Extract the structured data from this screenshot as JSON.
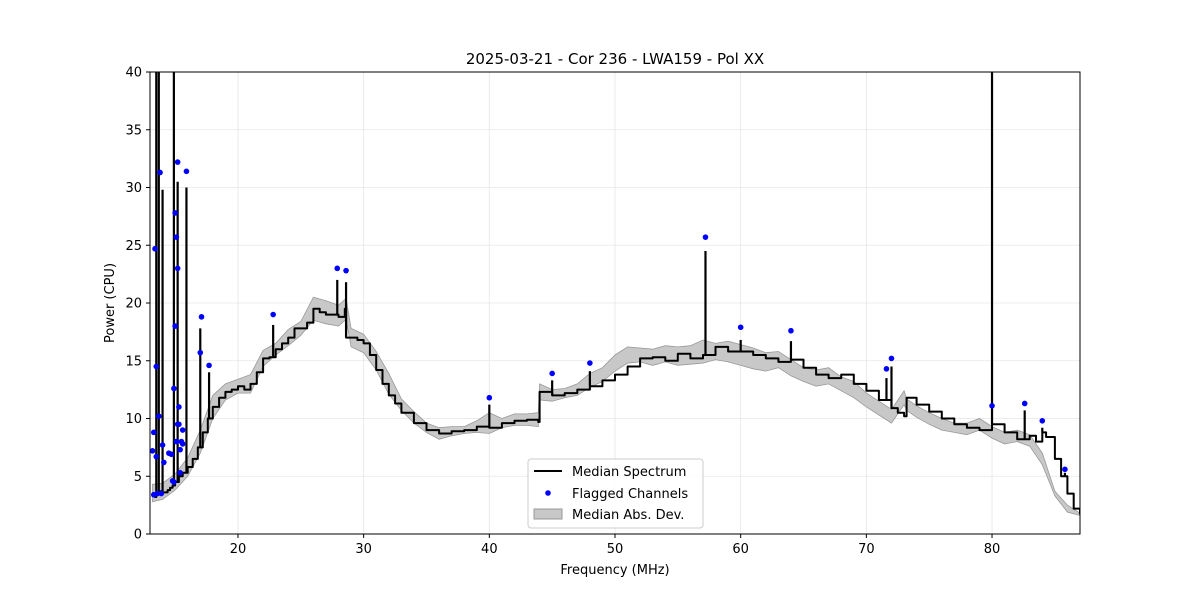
{
  "chart_data": {
    "type": "line",
    "title": "2025-03-21 - Cor 236 - LWA159 - Pol XX",
    "xlabel": "Frequency (MHz)",
    "ylabel": "Power (CPU)",
    "xlim": [
      13.0,
      87.0
    ],
    "ylim": [
      0,
      40
    ],
    "x_ticks": [
      20,
      30,
      40,
      50,
      60,
      70,
      80
    ],
    "y_ticks": [
      0,
      5,
      10,
      15,
      20,
      25,
      30,
      35,
      40
    ],
    "grid": true,
    "legend_position": "bottom-center",
    "colors": {
      "median": "#000000",
      "flagged": "#0000ff",
      "mad_fill": "#c8c8c8",
      "mad_edge": "#999999"
    },
    "series": [
      {
        "name": "Median Spectrum",
        "kind": "line",
        "x": [
          13.2,
          13.3,
          13.4,
          13.5,
          13.6,
          13.7,
          13.8,
          13.9,
          14.0,
          14.2,
          14.4,
          14.6,
          14.8,
          15.0,
          15.3,
          15.6,
          16.0,
          16.4,
          16.8,
          17.2,
          17.6,
          18.0,
          18.5,
          19.0,
          19.5,
          20.0,
          20.5,
          21.0,
          21.5,
          22.0,
          22.5,
          23.0,
          23.5,
          24.0,
          24.5,
          25.0,
          25.5,
          26.0,
          26.5,
          27.0,
          27.5,
          28.0,
          28.5,
          28.6,
          29.0,
          29.5,
          30.0,
          30.5,
          31.0,
          31.5,
          32.0,
          32.5,
          33.0,
          34.0,
          35.0,
          36.0,
          37.0,
          38.0,
          39.0,
          40.0,
          41.0,
          42.0,
          43.0,
          43.9,
          44.0,
          45.0,
          46.0,
          47.0,
          48.0,
          49.0,
          50.0,
          51.0,
          52.0,
          53.0,
          54.0,
          55.0,
          56.0,
          57.0,
          58.0,
          59.0,
          60.0,
          61.0,
          62.0,
          63.0,
          64.0,
          65.0,
          66.0,
          67.0,
          68.0,
          69.0,
          70.0,
          71.0,
          72.0,
          72.5,
          73.0,
          73.2,
          74.0,
          75.0,
          76.0,
          77.0,
          78.0,
          79.0,
          80.0,
          81.0,
          82.0,
          83.0,
          83.5,
          84.0,
          84.3,
          85.0,
          85.5,
          86.0,
          86.5,
          87.0
        ],
        "y": [
          3.5,
          3.3,
          3.2,
          3.4,
          3.5,
          3.6,
          3.7,
          3.7,
          3.6,
          3.6,
          3.8,
          4.0,
          4.2,
          4.5,
          5.0,
          5.3,
          5.8,
          6.5,
          7.5,
          8.8,
          10.0,
          11.0,
          11.8,
          12.3,
          12.5,
          12.8,
          12.5,
          13.0,
          14.0,
          15.2,
          15.3,
          16.0,
          16.5,
          17.0,
          17.8,
          17.8,
          18.3,
          19.5,
          19.2,
          19.0,
          19.0,
          18.8,
          19.5,
          17.0,
          17.0,
          16.8,
          16.5,
          15.5,
          14.2,
          13.0,
          12.0,
          11.3,
          10.5,
          9.6,
          9.0,
          8.7,
          8.9,
          9.0,
          9.3,
          9.2,
          9.6,
          9.8,
          9.9,
          9.7,
          12.3,
          12.0,
          12.2,
          12.5,
          12.8,
          13.3,
          13.8,
          14.5,
          15.2,
          15.3,
          15.0,
          15.6,
          15.2,
          15.5,
          16.2,
          15.8,
          15.8,
          15.5,
          15.2,
          14.9,
          15.1,
          14.4,
          13.8,
          13.5,
          13.8,
          13.0,
          12.4,
          11.6,
          10.9,
          10.5,
          10.2,
          11.8,
          11.2,
          10.6,
          10.0,
          9.5,
          9.2,
          9.0,
          9.5,
          8.8,
          8.2,
          8.5,
          8.0,
          8.8,
          8.4,
          6.5,
          5.0,
          3.5,
          2.2,
          1.7
        ]
      },
      {
        "name": "Flagged Channels",
        "kind": "scatter",
        "x": [
          13.2,
          13.4,
          13.5,
          13.7,
          13.8,
          14.0,
          13.3,
          13.6,
          13.9,
          14.1,
          14.5,
          14.8,
          14.9,
          15.0,
          15.1,
          15.2,
          15.2,
          15.3,
          15.4,
          15.5,
          15.6,
          15.9,
          17.0,
          17.1,
          17.7,
          22.8,
          27.9,
          28.6,
          40.0,
          45.0,
          48.0,
          57.2,
          60.0,
          64.0,
          71.6,
          72.0,
          80.0,
          82.6,
          84.0,
          85.8,
          15.0,
          15.3,
          14.9,
          15.6,
          15.1,
          13.3,
          13.5,
          15.4,
          15.2,
          14.7
        ],
        "y": [
          7.2,
          24.7,
          14.5,
          10.2,
          31.3,
          7.7,
          3.4,
          3.5,
          3.5,
          6.2,
          7.0,
          4.6,
          12.6,
          27.8,
          25.7,
          32.2,
          23.0,
          11.0,
          5.3,
          8.0,
          9.0,
          31.4,
          15.7,
          18.8,
          14.6,
          19.0,
          23.0,
          22.8,
          11.8,
          13.9,
          14.8,
          25.7,
          17.9,
          17.6,
          14.3,
          15.2,
          11.1,
          11.3,
          9.8,
          5.6,
          18.0,
          9.5,
          4.5,
          7.8,
          8.0,
          8.8,
          6.7,
          7.3,
          9.5,
          6.9
        ]
      },
      {
        "name": "Median Abs. Dev.",
        "kind": "band",
        "x": [
          13.2,
          14.0,
          15.0,
          16.0,
          17.0,
          18.0,
          19.0,
          20.0,
          21.0,
          22.0,
          23.0,
          24.0,
          25.0,
          26.0,
          27.0,
          28.0,
          28.6,
          29.0,
          30.0,
          31.0,
          32.0,
          33.0,
          34.0,
          35.0,
          36.0,
          37.0,
          38.0,
          39.0,
          40.0,
          41.0,
          42.0,
          43.0,
          43.9,
          44.0,
          45.0,
          46.0,
          47.0,
          48.0,
          49.0,
          50.0,
          51.0,
          52.0,
          53.0,
          54.0,
          55.0,
          56.0,
          57.0,
          58.0,
          59.0,
          60.0,
          61.0,
          62.0,
          63.0,
          64.0,
          65.0,
          66.0,
          67.0,
          68.0,
          69.0,
          70.0,
          71.0,
          72.0,
          73.0,
          73.2,
          74.0,
          75.0,
          76.0,
          77.0,
          78.0,
          79.0,
          80.0,
          81.0,
          82.0,
          83.0,
          84.0,
          85.0,
          86.0,
          87.0
        ],
        "lower": [
          2.8,
          3.0,
          3.8,
          5.0,
          7.0,
          10.0,
          11.6,
          12.2,
          12.2,
          14.5,
          15.5,
          16.3,
          17.2,
          18.5,
          18.2,
          18.0,
          18.6,
          16.2,
          15.7,
          14.2,
          12.1,
          10.7,
          9.6,
          8.8,
          8.2,
          8.5,
          8.7,
          8.8,
          8.7,
          9.2,
          9.4,
          9.4,
          9.3,
          11.6,
          11.5,
          11.8,
          12.0,
          12.7,
          13.2,
          14.1,
          14.8,
          14.9,
          14.6,
          14.9,
          14.6,
          14.7,
          14.8,
          15.1,
          14.9,
          14.6,
          14.3,
          14.1,
          14.4,
          13.7,
          13.2,
          12.8,
          13.0,
          12.4,
          11.8,
          11.0,
          10.3,
          9.6,
          11.2,
          10.7,
          10.1,
          9.5,
          9.0,
          8.8,
          8.6,
          9.0,
          8.3,
          7.8,
          8.0,
          7.6,
          6.0,
          3.3,
          1.9,
          1.6
        ],
        "upper": [
          4.3,
          4.4,
          5.2,
          6.6,
          9.0,
          12.0,
          13.0,
          13.4,
          13.8,
          15.9,
          16.5,
          17.7,
          18.4,
          20.5,
          20.2,
          19.8,
          20.4,
          17.8,
          17.3,
          15.8,
          13.9,
          11.7,
          10.6,
          9.6,
          9.2,
          9.3,
          9.3,
          9.8,
          10.5,
          10.0,
          10.4,
          10.4,
          10.5,
          13.0,
          12.5,
          12.6,
          13.0,
          13.9,
          14.4,
          15.5,
          16.2,
          16.1,
          16.0,
          16.3,
          16.2,
          16.3,
          16.8,
          16.5,
          16.7,
          16.4,
          16.1,
          15.7,
          15.8,
          15.1,
          14.4,
          14.2,
          14.4,
          13.6,
          13.2,
          12.2,
          11.5,
          10.8,
          12.4,
          11.7,
          11.1,
          10.5,
          10.0,
          9.6,
          9.6,
          10.0,
          9.3,
          8.8,
          9.0,
          8.6,
          7.0,
          3.7,
          2.5,
          1.8
        ]
      }
    ],
    "spikes": [
      {
        "x": 13.5,
        "y": 40.0
      },
      {
        "x": 13.7,
        "y": 40.0
      },
      {
        "x": 14.0,
        "y": 29.8
      },
      {
        "x": 14.9,
        "y": 40.0
      },
      {
        "x": 15.2,
        "y": 30.5
      },
      {
        "x": 15.9,
        "y": 30.0
      },
      {
        "x": 17.0,
        "y": 17.8
      },
      {
        "x": 17.7,
        "y": 14.0
      },
      {
        "x": 22.8,
        "y": 18.1
      },
      {
        "x": 27.9,
        "y": 22.0
      },
      {
        "x": 28.6,
        "y": 21.8
      },
      {
        "x": 40.0,
        "y": 11.2
      },
      {
        "x": 45.0,
        "y": 13.3
      },
      {
        "x": 48.0,
        "y": 14.1
      },
      {
        "x": 57.2,
        "y": 24.5
      },
      {
        "x": 60.0,
        "y": 16.8
      },
      {
        "x": 64.0,
        "y": 16.7
      },
      {
        "x": 71.6,
        "y": 13.5
      },
      {
        "x": 72.0,
        "y": 14.5
      },
      {
        "x": 80.0,
        "y": 40.0
      },
      {
        "x": 82.6,
        "y": 10.7
      },
      {
        "x": 84.0,
        "y": 9.2
      },
      {
        "x": 85.8,
        "y": 5.3
      }
    ]
  }
}
